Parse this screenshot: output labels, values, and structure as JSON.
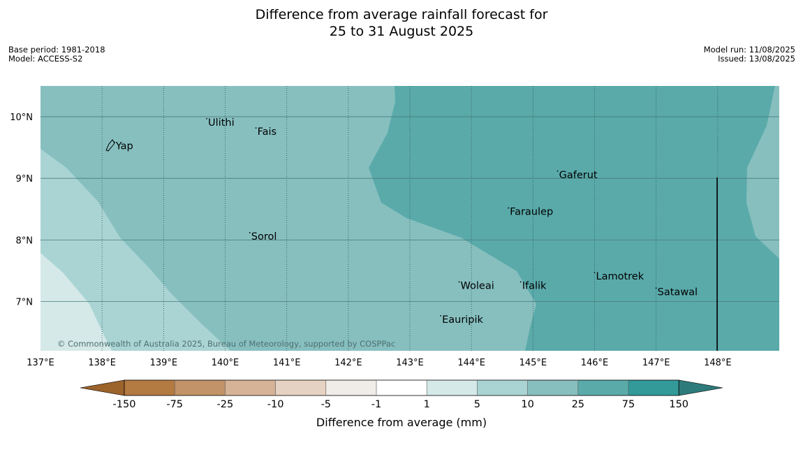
{
  "title": {
    "line1": "Difference from average rainfall forecast for",
    "line2": "25 to 31 August 2025"
  },
  "meta": {
    "base_period": "Base period: 1981-2018",
    "model": "Model: ACCESS-S2",
    "model_run": "Model run: 11/08/2025",
    "issued": "Issued: 13/08/2025"
  },
  "map": {
    "lon_range": [
      137,
      149
    ],
    "lat_range": [
      6.2,
      10.5
    ],
    "lat_ticks": [
      "10°N",
      "9°N",
      "8°N",
      "7°N"
    ],
    "lon_ticks": [
      "137°E",
      "138°E",
      "139°E",
      "140°E",
      "141°E",
      "142°E",
      "143°E",
      "144°E",
      "145°E",
      "146°E",
      "147°E",
      "148°E"
    ],
    "copyright": "© Commonwealth of Australia 2025, Bureau of Meteorology, supported by COSPPac",
    "places": [
      {
        "name": "Yap",
        "lon": 138.2,
        "lat": 9.52
      },
      {
        "name": "Ulithi",
        "lon": 139.7,
        "lat": 9.9
      },
      {
        "name": "Fais",
        "lon": 140.5,
        "lat": 9.75
      },
      {
        "name": "Gaferut",
        "lon": 145.4,
        "lat": 9.05
      },
      {
        "name": "Faraulep",
        "lon": 144.6,
        "lat": 8.45
      },
      {
        "name": "Sorol",
        "lon": 140.4,
        "lat": 8.05
      },
      {
        "name": "Lamotrek",
        "lon": 146.0,
        "lat": 7.4
      },
      {
        "name": "Woleai",
        "lon": 143.8,
        "lat": 7.25
      },
      {
        "name": "Ifalik",
        "lon": 144.8,
        "lat": 7.25
      },
      {
        "name": "Satawal",
        "lon": 147.0,
        "lat": 7.15
      },
      {
        "name": "Eauripik",
        "lon": 143.5,
        "lat": 6.7
      }
    ],
    "colors": {
      "zone_5_10": "#aad4d4",
      "zone_10_25": "#87bfbf",
      "zone_25_75": "#5aaaaa",
      "zone_1_5": "#d5e9e9"
    }
  },
  "legend": {
    "title": "Difference from average (mm)",
    "ticks": [
      "-150",
      "-75",
      "-25",
      "-10",
      "-5",
      "-1",
      "1",
      "5",
      "10",
      "25",
      "75",
      "150"
    ],
    "colors": [
      "#9c632b",
      "#b37a42",
      "#c29268",
      "#d6b396",
      "#e6d2c2",
      "#f0ece7",
      "#ffffff",
      "#d5e9e9",
      "#aad4d4",
      "#87bfbf",
      "#5aaaaa",
      "#339999",
      "#2e7b7b"
    ]
  }
}
